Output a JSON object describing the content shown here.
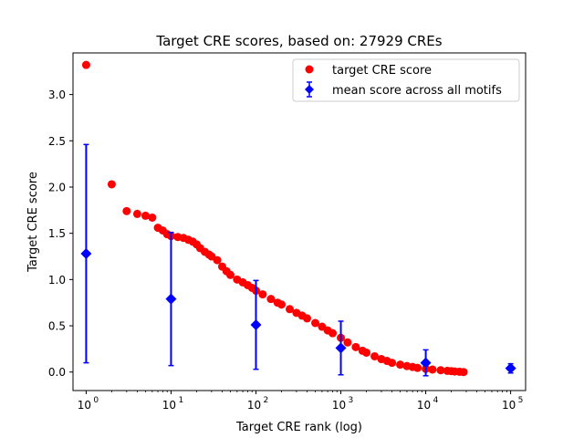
{
  "chart_data": {
    "type": "scatter",
    "title": "Target CRE scores, based on: 27929 CREs",
    "xlabel": "Target CRE rank (log)",
    "ylabel": "Target CRE score",
    "xscale": "log",
    "xlim": [
      0.7,
      150000
    ],
    "ylim": [
      -0.2,
      3.45
    ],
    "grid": false,
    "legend_position": "top-right",
    "x_ticks": [
      {
        "value": 1,
        "label": "10",
        "exp": "0"
      },
      {
        "value": 10,
        "label": "10",
        "exp": "1"
      },
      {
        "value": 100,
        "label": "10",
        "exp": "2"
      },
      {
        "value": 1000,
        "label": "10",
        "exp": "3"
      },
      {
        "value": 10000,
        "label": "10",
        "exp": "4"
      },
      {
        "value": 100000,
        "label": "10",
        "exp": "5"
      }
    ],
    "y_ticks": [
      {
        "value": 0.0,
        "label": "0.0"
      },
      {
        "value": 0.5,
        "label": "0.5"
      },
      {
        "value": 1.0,
        "label": "1.0"
      },
      {
        "value": 1.5,
        "label": "1.5"
      },
      {
        "value": 2.0,
        "label": "2.0"
      },
      {
        "value": 2.5,
        "label": "2.5"
      },
      {
        "value": 3.0,
        "label": "3.0"
      }
    ],
    "series": [
      {
        "name": "target CRE score",
        "kind": "scatter",
        "color": "#ff0000",
        "marker": "circle",
        "x": [
          1,
          2,
          3,
          4,
          5,
          6,
          7,
          8,
          9,
          10,
          12,
          14,
          16,
          18,
          20,
          22,
          25,
          28,
          30,
          35,
          40,
          45,
          50,
          60,
          70,
          80,
          90,
          100,
          120,
          150,
          180,
          200,
          250,
          300,
          350,
          400,
          500,
          600,
          700,
          800,
          1000,
          1200,
          1500,
          1800,
          2000,
          2500,
          3000,
          3500,
          4000,
          5000,
          6000,
          7000,
          8000,
          10000,
          12000,
          15000,
          18000,
          20000,
          22000,
          25000,
          27929
        ],
        "y": [
          3.32,
          2.03,
          1.74,
          1.71,
          1.69,
          1.67,
          1.56,
          1.53,
          1.49,
          1.47,
          1.46,
          1.45,
          1.43,
          1.41,
          1.38,
          1.34,
          1.3,
          1.27,
          1.25,
          1.21,
          1.14,
          1.09,
          1.05,
          1.0,
          0.97,
          0.94,
          0.91,
          0.88,
          0.84,
          0.79,
          0.75,
          0.73,
          0.68,
          0.64,
          0.61,
          0.58,
          0.53,
          0.49,
          0.45,
          0.42,
          0.37,
          0.32,
          0.27,
          0.23,
          0.21,
          0.17,
          0.14,
          0.12,
          0.1,
          0.08,
          0.065,
          0.055,
          0.045,
          0.035,
          0.027,
          0.02,
          0.013,
          0.01,
          0.006,
          0.003,
          0.0
        ]
      },
      {
        "name": "mean score across all motifs",
        "kind": "errorbar",
        "color": "#0000ff",
        "marker": "diamond",
        "x": [
          1,
          10,
          100,
          1000,
          10000,
          100000
        ],
        "y": [
          1.28,
          0.79,
          0.51,
          0.26,
          0.1,
          0.04
        ],
        "yerr": [
          1.18,
          0.72,
          0.48,
          0.29,
          0.14,
          0.05
        ]
      }
    ]
  }
}
